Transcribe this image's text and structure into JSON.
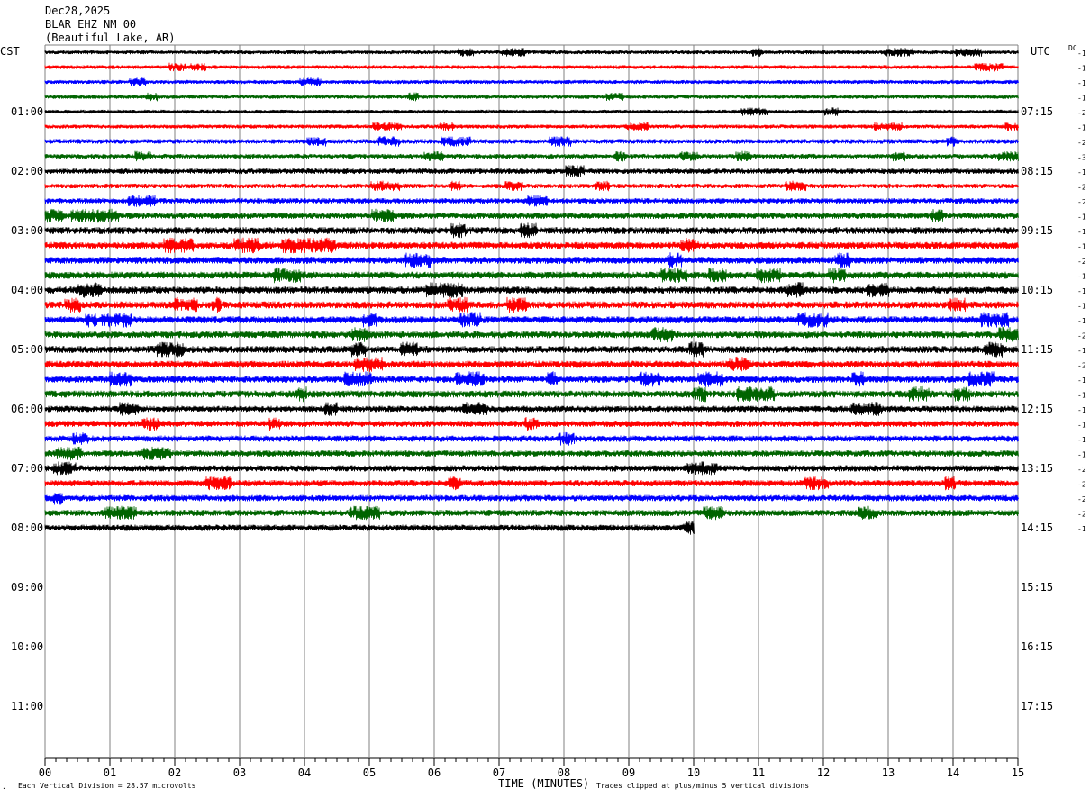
{
  "header": {
    "date": "Dec28,2025",
    "station": "BLAR EHZ NM 00",
    "location": "(Beautiful Lake, AR)"
  },
  "left_axis_label": "CST",
  "right_axis_label": "UTC",
  "dc_label": "DC",
  "footer": {
    "vertical_division": "Each Vertical Division =   28.57 microvolts",
    "clip_note": "Traces clipped at plus/minus 5 vertical divisions"
  },
  "colors": {
    "trace_cycle": [
      "#000000",
      "#ff0000",
      "#0000ff",
      "#006400"
    ],
    "grid": "#808080"
  },
  "chart_data": {
    "type": "line",
    "title": "",
    "xlabel": "TIME (MINUTES)",
    "xlim": [
      0,
      15
    ],
    "x_ticks": [
      "00",
      "01",
      "02",
      "03",
      "04",
      "05",
      "06",
      "07",
      "08",
      "09",
      "10",
      "11",
      "12",
      "13",
      "14",
      "15"
    ],
    "rows_per_hour": 4,
    "hours_cst": [
      "01:00",
      "02:00",
      "03:00",
      "04:00",
      "05:00",
      "06:00",
      "07:00",
      "08:00",
      "09:00",
      "10:00",
      "11:00"
    ],
    "hours_utc": [
      "07:15",
      "08:15",
      "09:15",
      "10:15",
      "11:15",
      "12:15",
      "13:15",
      "14:15",
      "15:15",
      "16:15",
      "17:15"
    ],
    "total_rows": 48,
    "traces_drawn": 33,
    "last_trace_end_minute": 10,
    "dc_offsets": [
      "-1",
      "-1",
      "-1",
      "-1",
      "-2",
      "-1",
      "-2",
      "-3",
      "-1",
      "-2",
      "-2",
      "-1",
      "-1",
      "-1",
      "-2",
      "-1",
      "-1",
      "-1",
      "-1",
      "-2",
      "-1",
      "-2",
      "-1",
      "-1",
      "-1",
      "-1",
      "-1",
      "-1",
      "-2",
      "-2",
      "-2",
      "-2",
      "-1"
    ],
    "amplitude_level": [
      1,
      1,
      1,
      1,
      1,
      1,
      1.2,
      1.2,
      1.4,
      1.2,
      1.4,
      1.6,
      1.8,
      1.8,
      1.8,
      1.8,
      1.8,
      1.8,
      1.8,
      1.8,
      1.8,
      1.8,
      1.8,
      1.8,
      1.6,
      1.6,
      1.6,
      1.6,
      1.6,
      1.6,
      1.6,
      1.6,
      1.6
    ]
  }
}
